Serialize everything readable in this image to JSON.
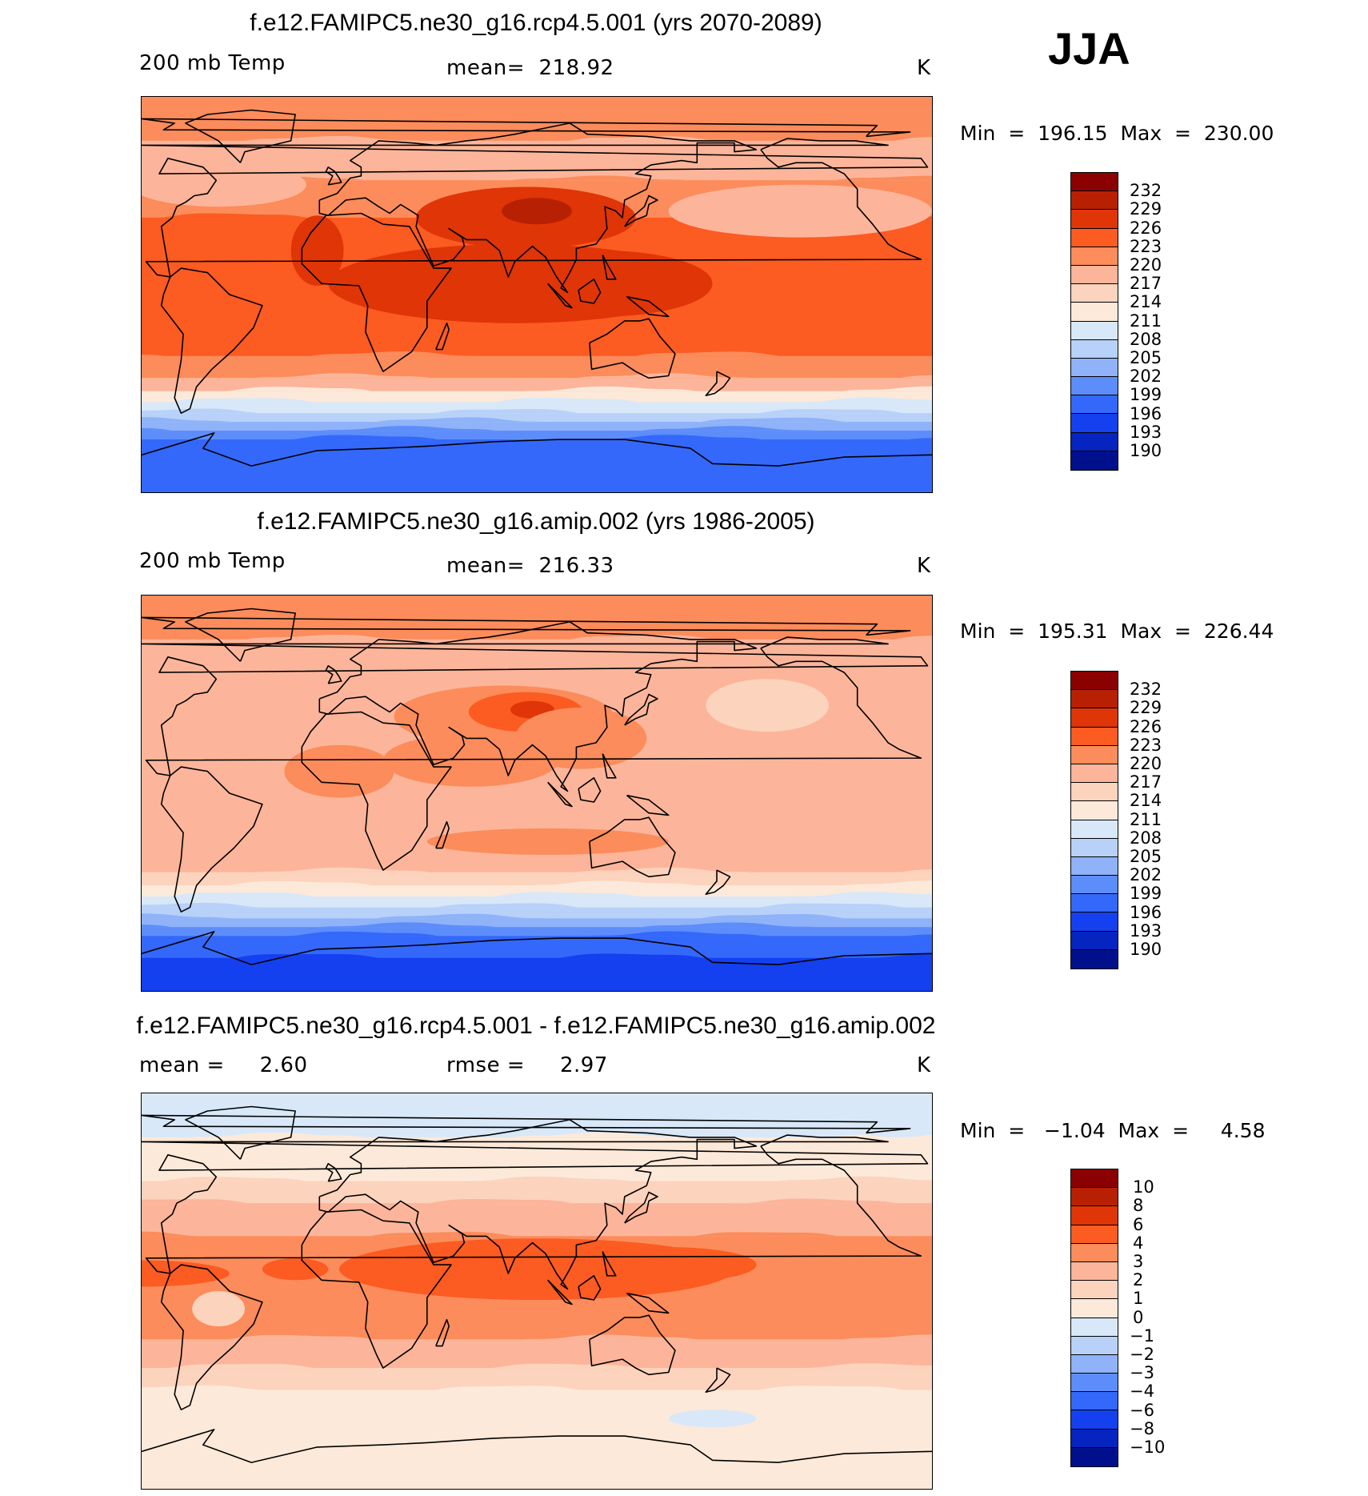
{
  "season": "JJA",
  "panels": [
    {
      "title": "f.e12.FAMIPC5.ne30_g16.rcp4.5.001 (yrs 2070-2089)",
      "left_label": "200 mb Temp",
      "center_label": "mean=  218.92",
      "units": "K",
      "minmax": "Min  =  196.15  Max  =  230.00",
      "colorbar": {
        "colors": [
          "#8b0000",
          "#b82003",
          "#e03507",
          "#fc5b21",
          "#fc8c5b",
          "#fcb59a",
          "#fcd3bd",
          "#fde9d9",
          "#d8e8f8",
          "#b7d1f9",
          "#8fb2f9",
          "#5d8dfa",
          "#3468fb",
          "#1440f0",
          "#0624c0",
          "#00108c"
        ],
        "labels": [
          "232",
          "229",
          "226",
          "223",
          "220",
          "217",
          "214",
          "211",
          "208",
          "205",
          "202",
          "199",
          "196",
          "193",
          "190"
        ]
      },
      "bands": [
        {
          "lat": 90,
          "level": 4
        },
        {
          "lat": 70,
          "level": 5
        },
        {
          "lat": 52,
          "level": 4
        },
        {
          "lat": 35,
          "level": 3
        },
        {
          "lat": 10,
          "level": 3
        },
        {
          "lat": -10,
          "level": 3
        },
        {
          "lat": -28,
          "level": 4
        },
        {
          "lat": -38,
          "level": 5
        },
        {
          "lat": -44,
          "level": 7
        },
        {
          "lat": -49,
          "level": 8
        },
        {
          "lat": -54,
          "level": 9
        },
        {
          "lat": -58,
          "level": 10
        },
        {
          "lat": -62,
          "level": 11
        },
        {
          "lat": -66,
          "level": 12
        },
        {
          "lat": -90,
          "level": 12
        }
      ],
      "blobs": [
        {
          "lon": 85,
          "lat": 35,
          "rlon": 50,
          "rlat": 14,
          "level": 2
        },
        {
          "lon": 90,
          "lat": 38,
          "rlon": 16,
          "rlat": 6,
          "level": 1
        },
        {
          "lon": 80,
          "lat": 5,
          "rlon": 85,
          "rlat": 18,
          "level": 2
        },
        {
          "lon": 120,
          "lat": 5,
          "rlon": 50,
          "rlat": 15,
          "level": 2
        },
        {
          "lon": -150,
          "lat": 38,
          "rlon": 60,
          "rlat": 12,
          "level": 5
        },
        {
          "lon": -55,
          "lat": 50,
          "rlon": 40,
          "rlat": 10,
          "level": 5
        },
        {
          "lon": -10,
          "lat": 20,
          "rlon": 12,
          "rlat": 16,
          "level": 2
        }
      ]
    },
    {
      "title": "f.e12.FAMIPC5.ne30_g16.amip.002 (yrs 1986-2005)",
      "left_label": "200 mb Temp",
      "center_label": "mean=  216.33",
      "units": "K",
      "minmax": "Min  =  195.31  Max  =  226.44",
      "colorbar": {
        "colors": [
          "#8b0000",
          "#b82003",
          "#e03507",
          "#fc5b21",
          "#fc8c5b",
          "#fcb59a",
          "#fcd3bd",
          "#fde9d9",
          "#d8e8f8",
          "#b7d1f9",
          "#8fb2f9",
          "#5d8dfa",
          "#3468fb",
          "#1440f0",
          "#0624c0",
          "#00108c"
        ],
        "labels": [
          "232",
          "229",
          "226",
          "223",
          "220",
          "217",
          "214",
          "211",
          "208",
          "205",
          "202",
          "199",
          "196",
          "193",
          "190"
        ]
      },
      "bands": [
        {
          "lat": 90,
          "level": 4
        },
        {
          "lat": 70,
          "level": 5
        },
        {
          "lat": 52,
          "level": 5
        },
        {
          "lat": 35,
          "level": 5
        },
        {
          "lat": 10,
          "level": 5
        },
        {
          "lat": -10,
          "level": 5
        },
        {
          "lat": -28,
          "level": 5
        },
        {
          "lat": -36,
          "level": 6
        },
        {
          "lat": -42,
          "level": 7
        },
        {
          "lat": -47,
          "level": 8
        },
        {
          "lat": -52,
          "level": 9
        },
        {
          "lat": -57,
          "level": 10
        },
        {
          "lat": -61,
          "level": 11
        },
        {
          "lat": -65,
          "level": 12
        },
        {
          "lat": -75,
          "level": 13
        },
        {
          "lat": -90,
          "level": 13
        }
      ],
      "blobs": [
        {
          "lon": 75,
          "lat": 35,
          "rlon": 50,
          "rlat": 14,
          "level": 4
        },
        {
          "lon": 85,
          "lat": 37,
          "rlon": 26,
          "rlat": 9,
          "level": 3
        },
        {
          "lon": 88,
          "lat": 38,
          "rlon": 10,
          "rlat": 4,
          "level": 2
        },
        {
          "lon": 60,
          "lat": 15,
          "rlon": 40,
          "rlat": 12,
          "level": 4
        },
        {
          "lon": 110,
          "lat": 25,
          "rlon": 30,
          "rlat": 14,
          "level": 4
        },
        {
          "lon": 95,
          "lat": -22,
          "rlon": 55,
          "rlat": 6,
          "level": 4
        },
        {
          "lon": -165,
          "lat": 40,
          "rlon": 28,
          "rlat": 12,
          "level": 6
        },
        {
          "lon": 0,
          "lat": 10,
          "rlon": 25,
          "rlat": 12,
          "level": 4
        }
      ]
    },
    {
      "title": "f.e12.FAMIPC5.ne30_g16.rcp4.5.001 - f.e12.FAMIPC5.ne30_g16.amip.002",
      "left_label": "mean =     2.60",
      "center_label": "rmse =     2.97",
      "units": "K",
      "minmax": "Min  =   −1.04  Max  =     4.58",
      "colorbar": {
        "colors": [
          "#8b0000",
          "#b82003",
          "#e03507",
          "#fc5b21",
          "#fc8c5b",
          "#fcb59a",
          "#fcd3bd",
          "#fde9d9",
          "#d8e8f8",
          "#b7d1f9",
          "#8fb2f9",
          "#5d8dfa",
          "#3468fb",
          "#1440f0",
          "#0624c0",
          "#00108c"
        ],
        "labels": [
          "10",
          "8",
          "6",
          "4",
          "3",
          "2",
          "1",
          "0",
          "−1",
          "−2",
          "−3",
          "−4",
          "−6",
          "−8",
          "−10"
        ]
      },
      "bands": [
        {
          "lat": 90,
          "level": 8
        },
        {
          "lat": 78,
          "level": 8
        },
        {
          "lat": 70,
          "level": 7
        },
        {
          "lat": 50,
          "level": 6
        },
        {
          "lat": 40,
          "level": 5
        },
        {
          "lat": 25,
          "level": 4
        },
        {
          "lat": 10,
          "level": 4
        },
        {
          "lat": -10,
          "level": 4
        },
        {
          "lat": -22,
          "level": 5
        },
        {
          "lat": -35,
          "level": 6
        },
        {
          "lat": -45,
          "level": 7
        },
        {
          "lat": -90,
          "level": 7
        }
      ],
      "blobs": [
        {
          "lon": 90,
          "lat": 10,
          "rlon": 90,
          "rlat": 14,
          "level": 3
        },
        {
          "lon": 150,
          "lat": 12,
          "rlon": 40,
          "rlat": 8,
          "level": 3
        },
        {
          "lon": -90,
          "lat": 8,
          "rlon": 40,
          "rlat": 6,
          "level": 3
        },
        {
          "lon": -20,
          "lat": 10,
          "rlon": 15,
          "rlat": 5,
          "level": 3
        },
        {
          "lon": -55,
          "lat": -8,
          "rlon": 12,
          "rlat": 8,
          "level": 6
        },
        {
          "lon": 175,
          "lat": 85,
          "rlon": 45,
          "rlat": 5,
          "level": 8
        },
        {
          "lon": -105,
          "lat": 80,
          "rlon": 30,
          "rlat": 10,
          "level": 8
        },
        {
          "lon": 170,
          "lat": -58,
          "rlon": 20,
          "rlat": 4,
          "level": 8
        }
      ]
    }
  ]
}
